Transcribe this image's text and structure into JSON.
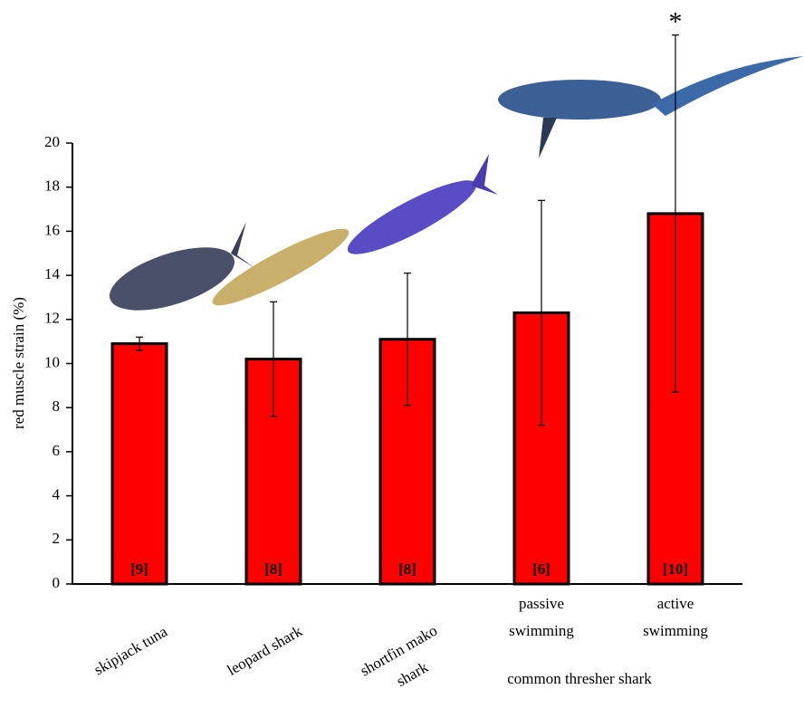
{
  "chart_data": {
    "type": "bar",
    "y_label": "red muscle strain (%)",
    "categories": [
      "skipjack tuna",
      "leopard shark",
      "shortfin mako shark",
      "passive swimming",
      "active swimming"
    ],
    "group_label": "common thresher shark",
    "values": [
      10.9,
      10.2,
      11.1,
      12.3,
      16.8
    ],
    "errors": [
      0.3,
      2.6,
      3.0,
      5.1,
      8.1
    ],
    "n_labels": [
      "[9]",
      "[8]",
      "[8]",
      "[6]",
      "[10]"
    ],
    "annotation": "*",
    "color": "#ff0000",
    "ylim": [
      0,
      20
    ],
    "yticks": [
      0,
      2,
      4,
      6,
      8,
      10,
      12,
      14,
      16,
      18,
      20
    ]
  }
}
